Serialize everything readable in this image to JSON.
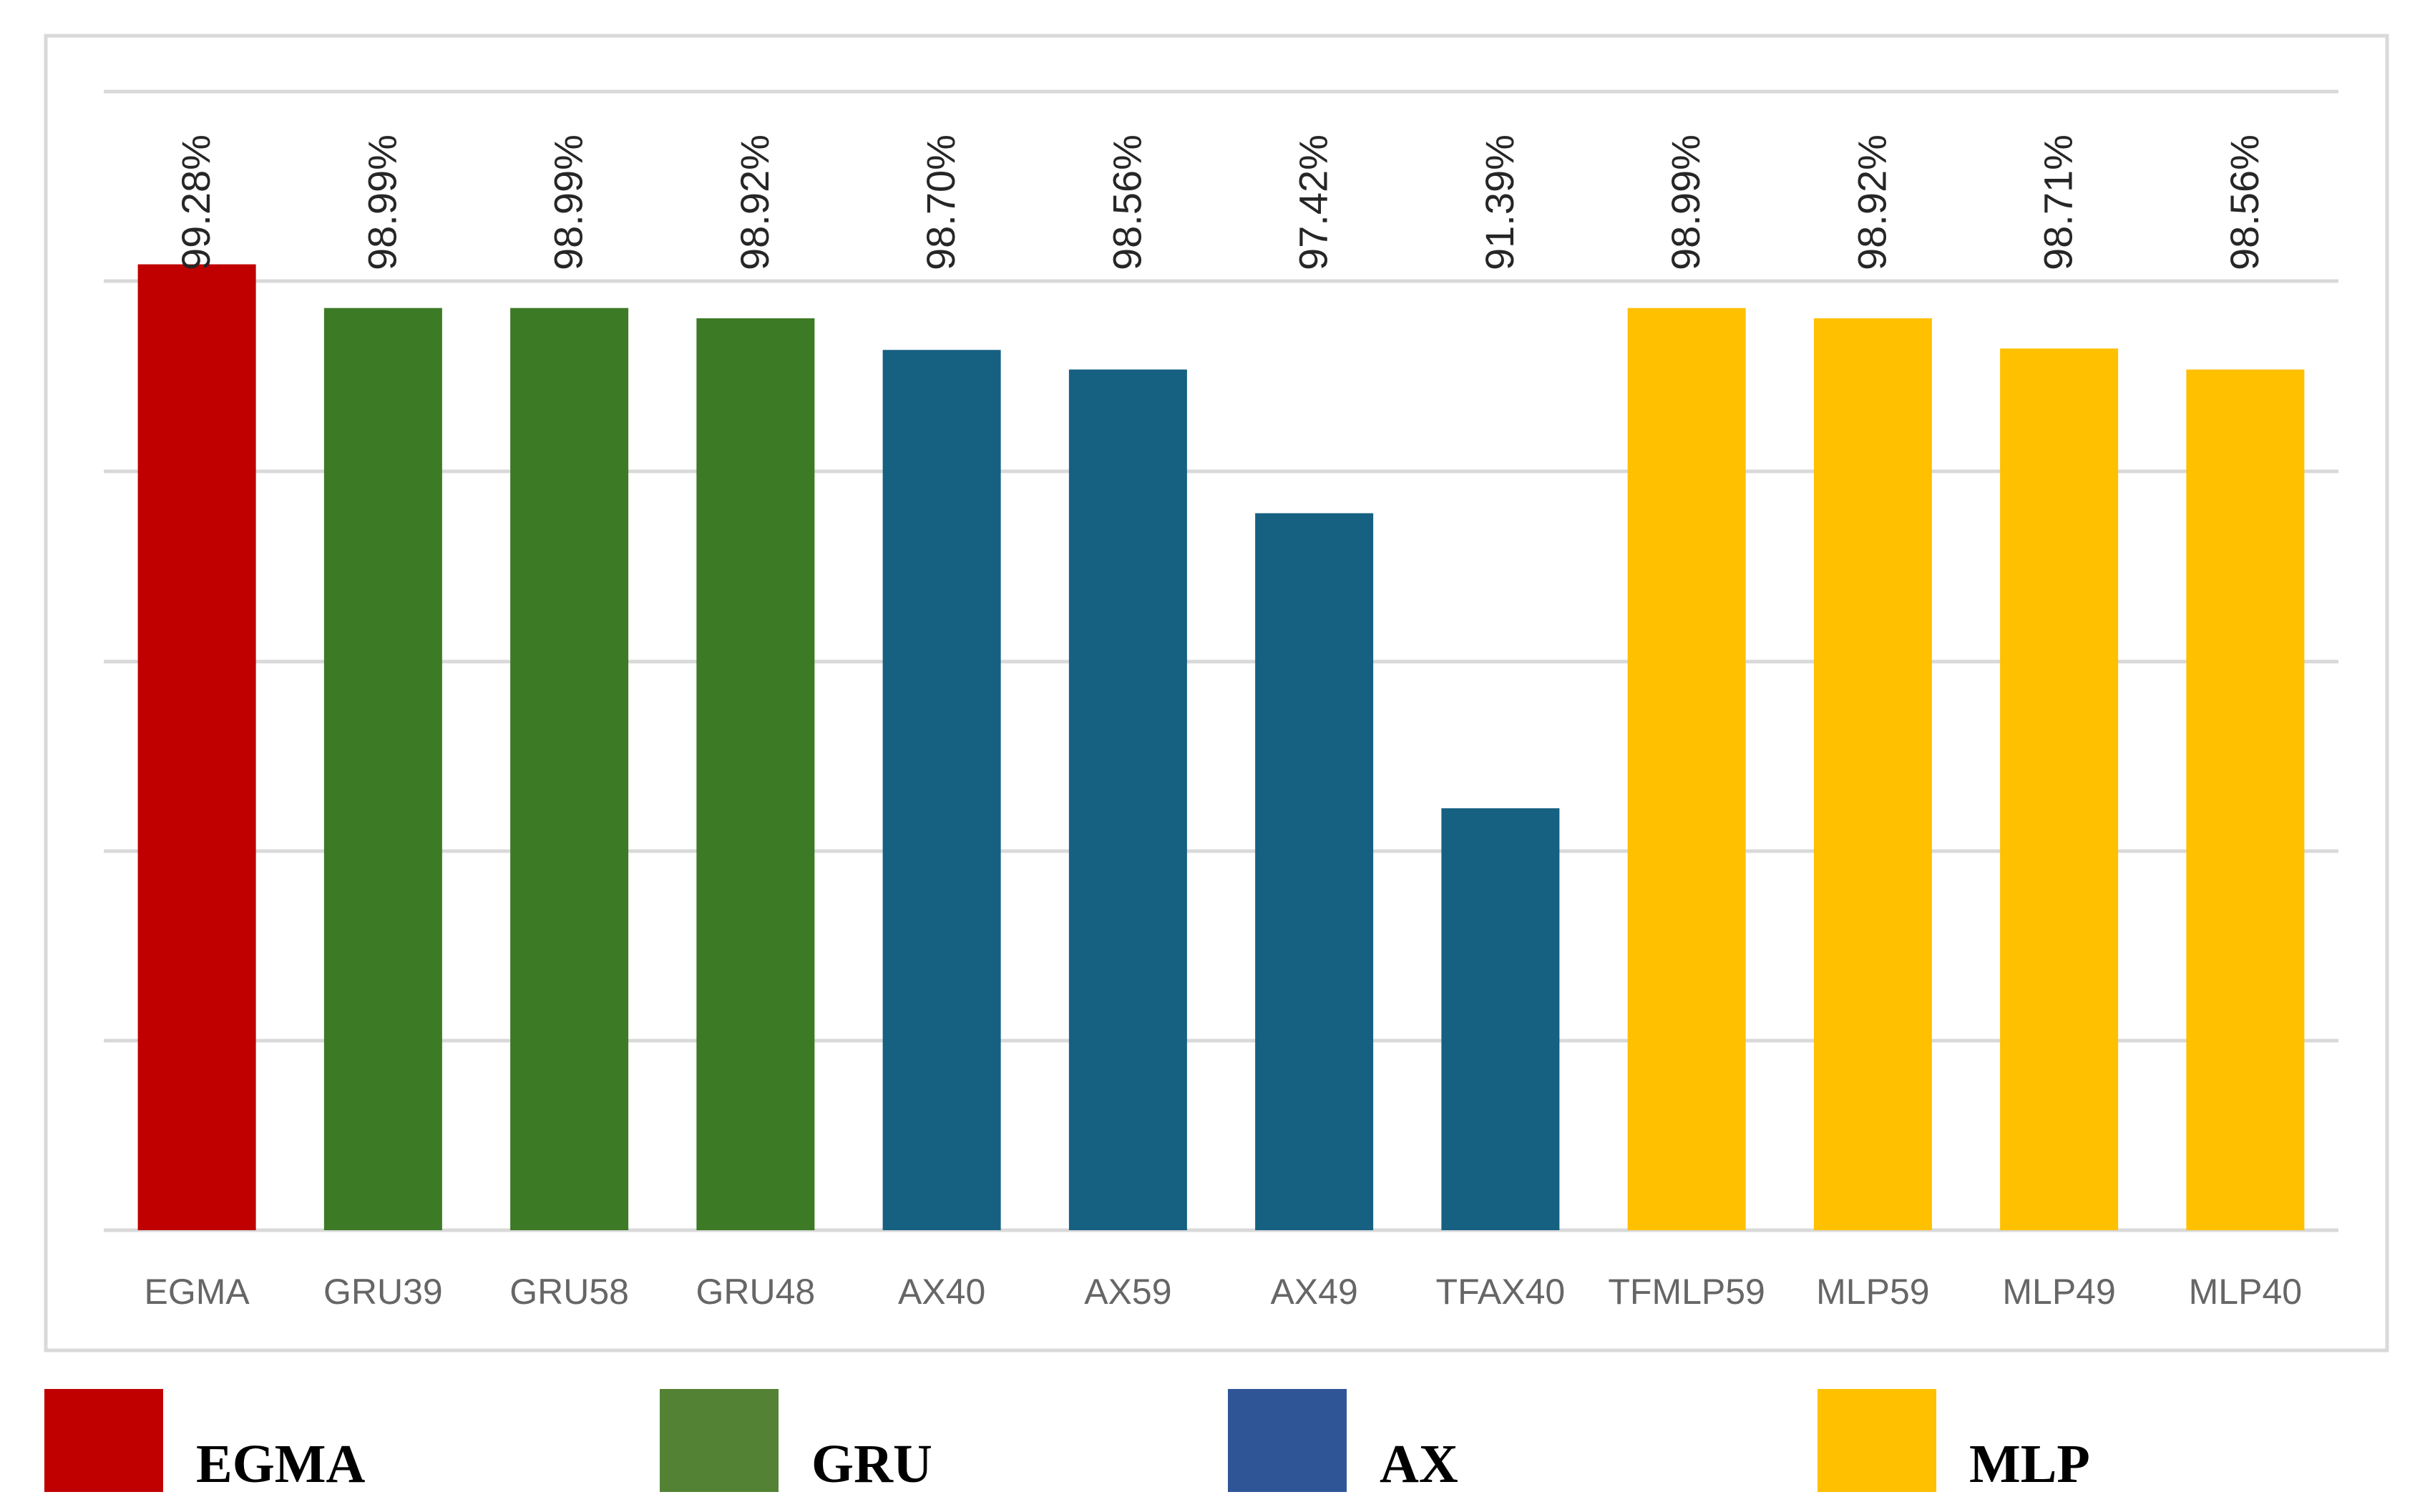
{
  "chart_data": {
    "type": "bar",
    "title": "",
    "xlabel": "",
    "ylabel": "",
    "categories": [
      "EGMA",
      "GRU39",
      "GRU58",
      "GRU48",
      "AX40",
      "AX59",
      "AX49",
      "TFAX40",
      "TFMLP59",
      "MLP59",
      "MLP49",
      "MLP40"
    ],
    "values": [
      99.28,
      98.99,
      98.99,
      98.92,
      98.7,
      98.56,
      97.42,
      91.39,
      98.99,
      98.92,
      98.71,
      98.56
    ],
    "value_labels": [
      "99.28%",
      "98.99%",
      "98.99%",
      "98.92%",
      "98.70%",
      "98.56%",
      "97.42%",
      "91.39%",
      "98.99%",
      "98.92%",
      "98.71%",
      "98.56%"
    ],
    "groups": [
      "EGMA",
      "GRU",
      "GRU",
      "GRU",
      "AX",
      "AX",
      "AX",
      "AX",
      "MLP",
      "MLP",
      "MLP",
      "MLP"
    ],
    "gridlines": true,
    "ytick_labels_shown": false,
    "legend": {
      "placement": "bottom",
      "entries": [
        {
          "name": "EGMA",
          "color": "#C00000"
        },
        {
          "name": "GRU",
          "color": "#548235"
        },
        {
          "name": "AX",
          "color": "#2F5597"
        },
        {
          "name": "MLP",
          "color": "#FFC000"
        }
      ]
    },
    "bar_colors": {
      "EGMA": "#C00000",
      "GRU": "#3C7A25",
      "AX": "#166082",
      "MLP": "#FFC000"
    }
  }
}
